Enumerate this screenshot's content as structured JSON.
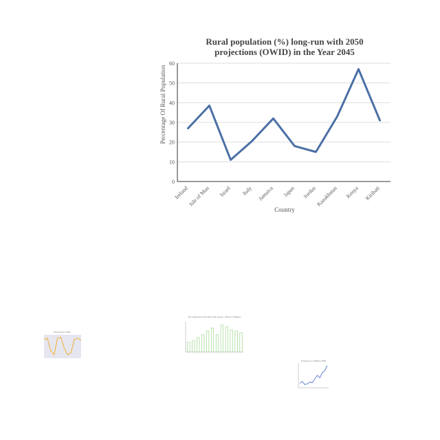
{
  "chart_data": [
    {
      "type": "line",
      "title_lines": [
        "Rural population (%) long-run with 2050",
        "projections (OWID) in the Year 2045"
      ],
      "xlabel": "Country",
      "ylabel": "Percentage Of Rural Population",
      "categories": [
        "Ireland",
        "Isle of Man",
        "Israel",
        "Italy",
        "Jamaica",
        "Japan",
        "Jordan",
        "Kazakhstan",
        "Kenya",
        "Kiribati"
      ],
      "series": [
        {
          "values": [
            27,
            38.5,
            11,
            20.5,
            32,
            18,
            15,
            33,
            57,
            31
          ]
        }
      ],
      "ylim": [
        0,
        60
      ],
      "yticks": [
        0,
        10,
        20,
        30,
        40,
        50,
        60
      ],
      "grid": true,
      "line_color": "#4a6fa5"
    },
    {
      "type": "line",
      "title": "Rural area in 2023",
      "line_color": "#f0b030",
      "background": "#e6e6f0",
      "series": [
        {
          "values": [
            0.85,
            0.9,
            0.3,
            0.1,
            0.9,
            0.95,
            0.4,
            0.1,
            0.2,
            0.85,
            0.9,
            0.8
          ]
        }
      ],
      "ylim": [
        0,
        1
      ]
    },
    {
      "type": "bar",
      "title": "Per capita fish stock (Kg of fish protein, 2023) in Thailand",
      "bar_color": "#8cd07a",
      "values": [
        10,
        12,
        15,
        18,
        22,
        25,
        18,
        28,
        26,
        23,
        22,
        20
      ],
      "ylim": [
        0,
        30
      ]
    },
    {
      "type": "line",
      "title": "Rural area in 2045 by 2050",
      "line_color": "#3a63c8",
      "series": [
        {
          "values": [
            5,
            8,
            3,
            4,
            7,
            6,
            12,
            18,
            14,
            22,
            26,
            34
          ]
        }
      ],
      "ylim": [
        0,
        36
      ]
    }
  ]
}
